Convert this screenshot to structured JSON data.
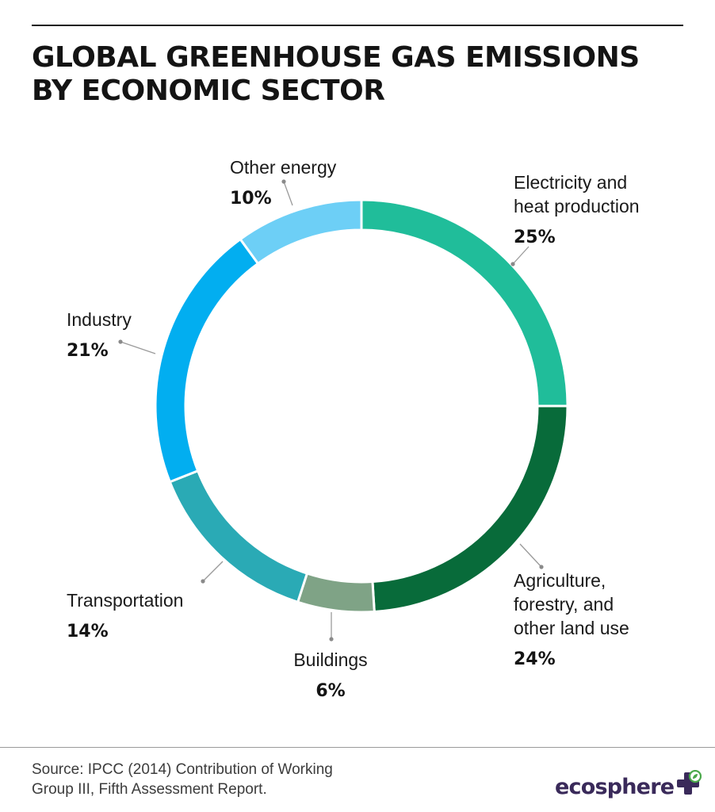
{
  "header": {
    "title_line1": "GLOBAL GREENHOUSE GAS EMISSIONS",
    "title_line2": "BY ECONOMIC SECTOR"
  },
  "chart_data": {
    "type": "pie",
    "style": "donut",
    "title": "GLOBAL GREENHOUSE GAS EMISSIONS BY ECONOMIC SECTOR",
    "unit": "%",
    "slices": [
      {
        "key": "electricity",
        "label_lines": [
          "Electricity and",
          "heat production"
        ],
        "value": 25,
        "value_text": "25%",
        "color": "#20bd9a"
      },
      {
        "key": "agriculture",
        "label_lines": [
          "Agriculture,",
          "forestry, and",
          "other land use"
        ],
        "value": 24,
        "value_text": "24%",
        "color": "#086b3a"
      },
      {
        "key": "buildings",
        "label_lines": [
          "Buildings"
        ],
        "value": 6,
        "value_text": "6%",
        "color": "#7fa386"
      },
      {
        "key": "transportation",
        "label_lines": [
          "Transportation"
        ],
        "value": 14,
        "value_text": "14%",
        "color": "#2aaab5"
      },
      {
        "key": "industry",
        "label_lines": [
          "Industry"
        ],
        "value": 21,
        "value_text": "21%",
        "color": "#02aef0"
      },
      {
        "key": "other-energy",
        "label_lines": [
          "Other energy"
        ],
        "value": 10,
        "value_text": "10%",
        "color": "#6dcff6"
      }
    ],
    "start_angle_deg": 0,
    "direction": "clockwise",
    "legend": "none"
  },
  "footer": {
    "source_line1": "Source: IPCC (2014) Contribution of Working",
    "source_line2": "Group III, Fifth Assessment Report.",
    "logo_text": "ecosphere",
    "logo_icon": "plus-leaf-icon",
    "logo_color": "#3a2a5a",
    "logo_accent": "#4aa84a"
  }
}
